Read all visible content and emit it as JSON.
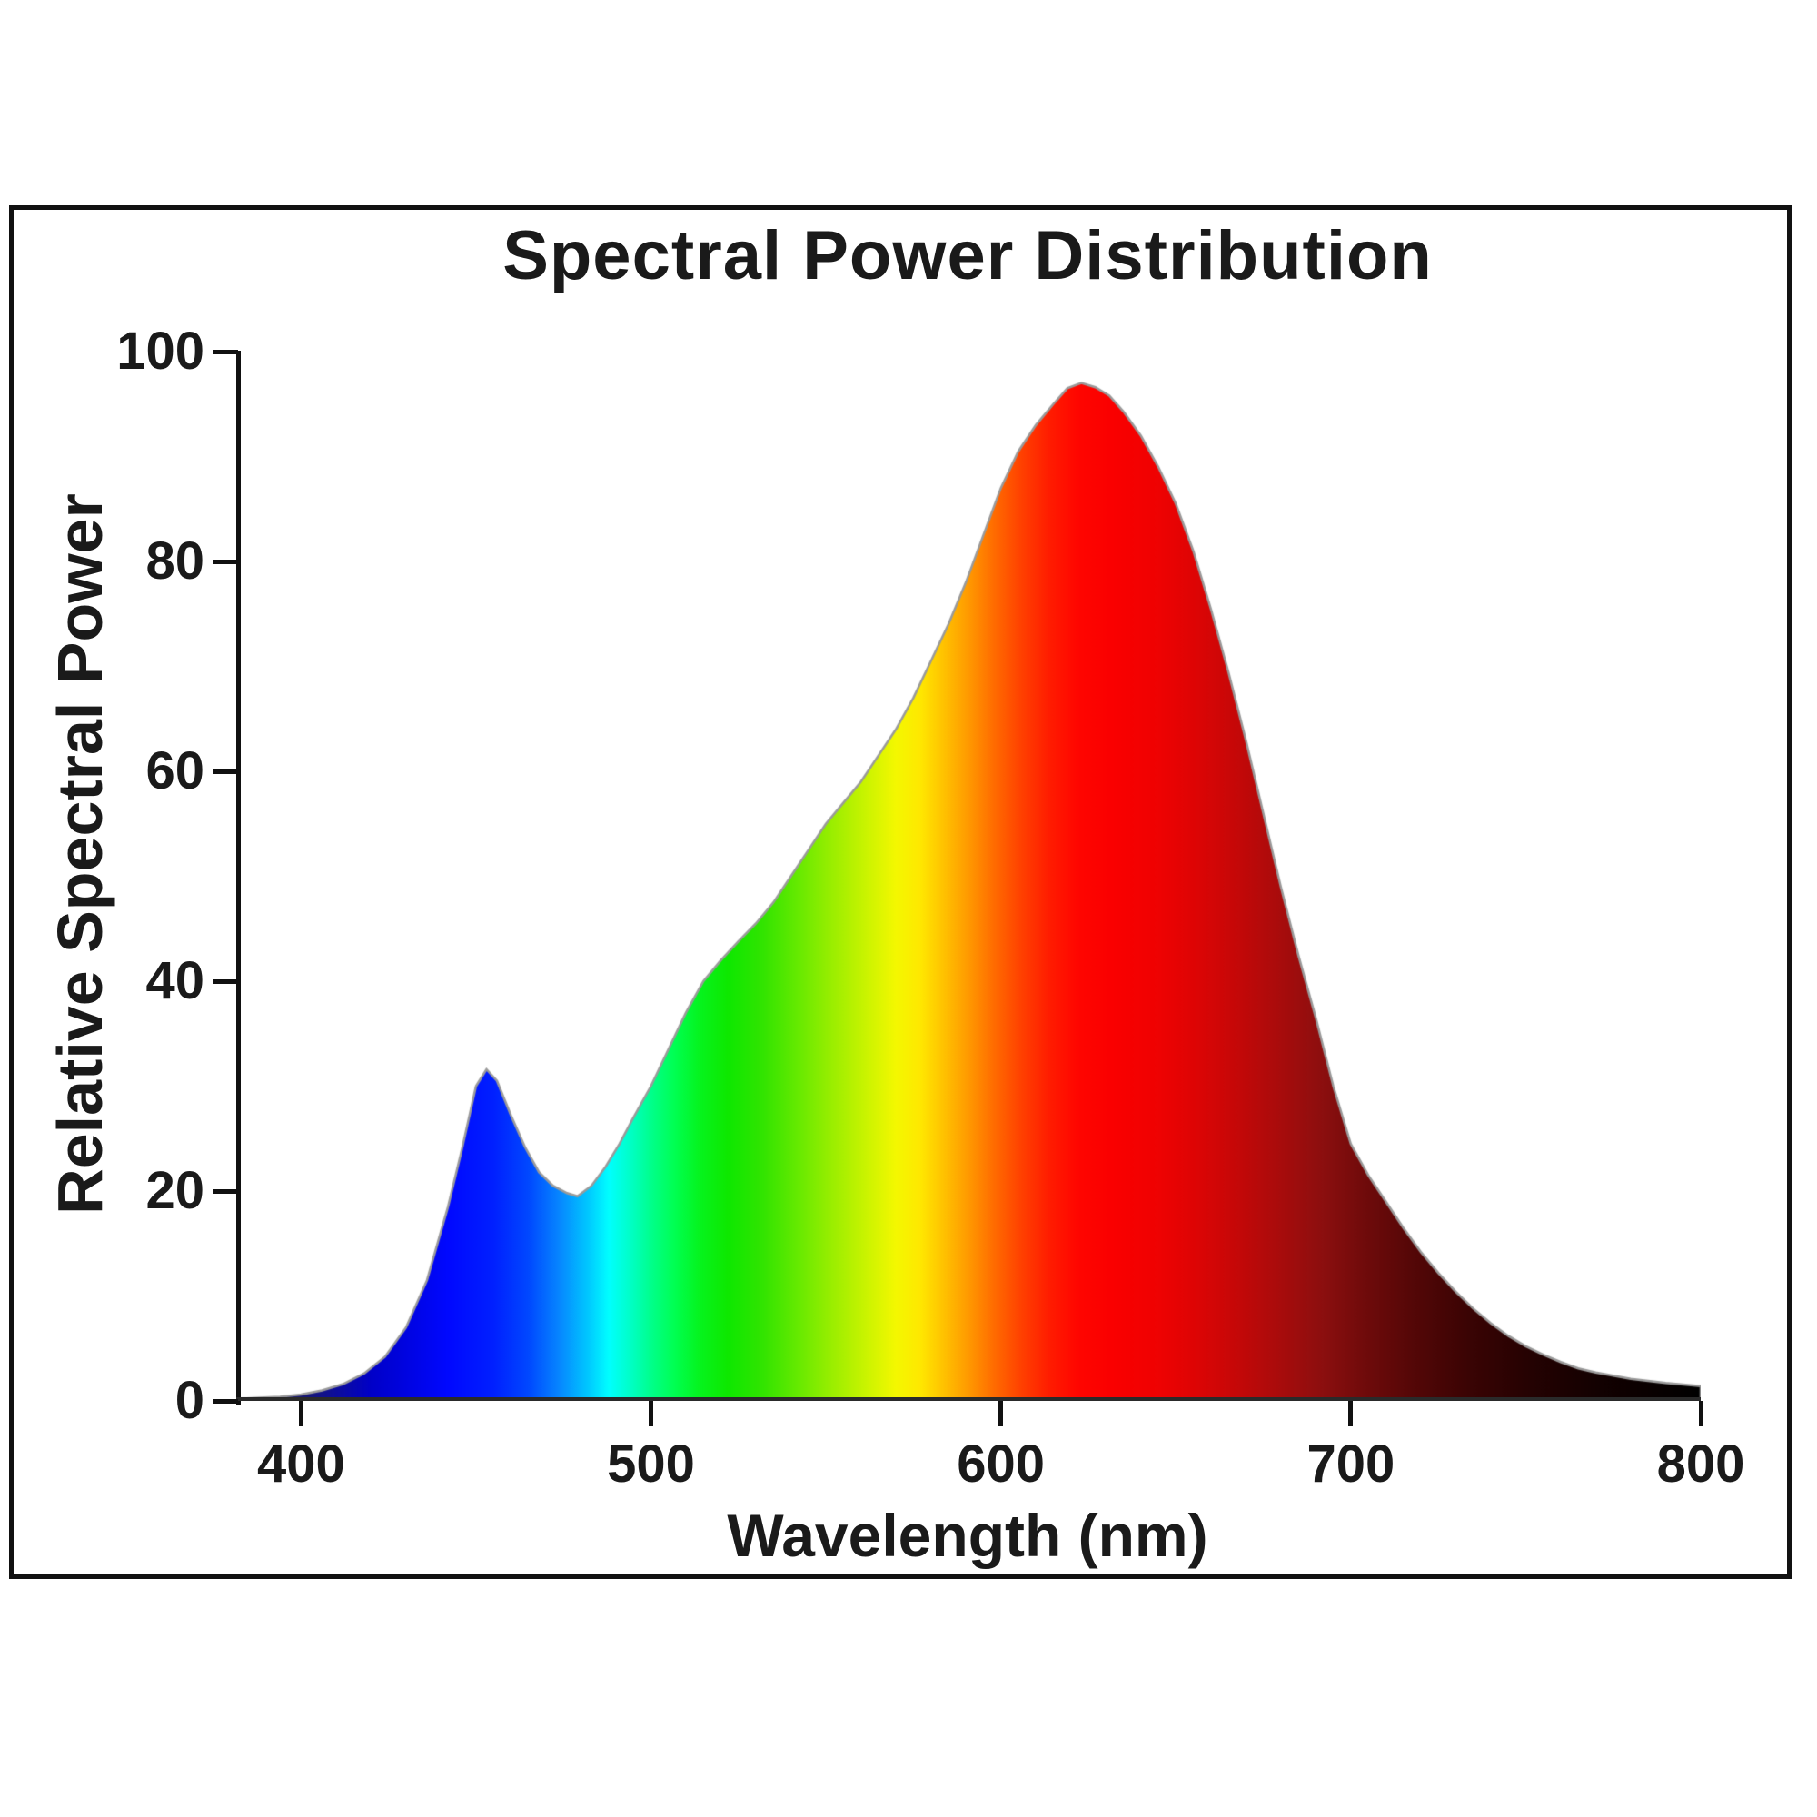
{
  "chart": {
    "title": "Spectral Power Distribution",
    "x_axis_label": "Wavelength (nm)",
    "y_axis_label": "Relative Spectral Power",
    "x_tick_labels": [
      "400",
      "500",
      "600",
      "700",
      "800"
    ],
    "y_tick_labels": [
      "0",
      "20",
      "40",
      "60",
      "80",
      "100"
    ]
  },
  "chart_data": {
    "type": "area",
    "title": "Spectral Power Distribution",
    "xlabel": "Wavelength (nm)",
    "ylabel": "Relative Spectral Power",
    "xlim": [
      382,
      800
    ],
    "ylim": [
      0,
      100
    ],
    "x_ticks": [
      400,
      500,
      600,
      700,
      800
    ],
    "y_ticks": [
      0,
      20,
      40,
      60,
      80,
      100
    ],
    "grid": false,
    "legend": false,
    "fill_style": "spectrum colors mapped to wavelength",
    "outline_color": "#9a9a9a",
    "features": {
      "blue_peak": {
        "x": 453,
        "y": 31.6
      },
      "cyan_dip": {
        "x": 479,
        "y": 19.5
      },
      "red_peak": {
        "x": 623,
        "y": 97
      },
      "end_value": {
        "x": 800,
        "y": 1.4
      }
    },
    "series": [
      {
        "name": "Relative Spectral Power",
        "points": [
          [
            382,
            0.2
          ],
          [
            388,
            0.3
          ],
          [
            394,
            0.4
          ],
          [
            400,
            0.6
          ],
          [
            406,
            1.0
          ],
          [
            412,
            1.6
          ],
          [
            418,
            2.6
          ],
          [
            424,
            4.2
          ],
          [
            430,
            7.0
          ],
          [
            436,
            11.5
          ],
          [
            442,
            18.5
          ],
          [
            446,
            24.0
          ],
          [
            450,
            30.0
          ],
          [
            453,
            31.6
          ],
          [
            456,
            30.5
          ],
          [
            460,
            27.2
          ],
          [
            464,
            24.2
          ],
          [
            468,
            21.8
          ],
          [
            472,
            20.5
          ],
          [
            476,
            19.8
          ],
          [
            479,
            19.5
          ],
          [
            483,
            20.5
          ],
          [
            487,
            22.3
          ],
          [
            491,
            24.5
          ],
          [
            495,
            27.0
          ],
          [
            500,
            30.0
          ],
          [
            505,
            33.5
          ],
          [
            510,
            37.0
          ],
          [
            515,
            40.0
          ],
          [
            520,
            42.0
          ],
          [
            525,
            43.8
          ],
          [
            530,
            45.5
          ],
          [
            535,
            47.5
          ],
          [
            540,
            50.0
          ],
          [
            545,
            52.5
          ],
          [
            550,
            55.0
          ],
          [
            555,
            57.0
          ],
          [
            560,
            59.0
          ],
          [
            565,
            61.5
          ],
          [
            570,
            64.0
          ],
          [
            575,
            67.0
          ],
          [
            580,
            70.5
          ],
          [
            585,
            74.0
          ],
          [
            590,
            78.0
          ],
          [
            595,
            82.5
          ],
          [
            600,
            87.0
          ],
          [
            605,
            90.5
          ],
          [
            610,
            93.0
          ],
          [
            615,
            95.0
          ],
          [
            619,
            96.5
          ],
          [
            623,
            97.0
          ],
          [
            627,
            96.6
          ],
          [
            631,
            95.8
          ],
          [
            635,
            94.3
          ],
          [
            640,
            92.0
          ],
          [
            645,
            89.0
          ],
          [
            650,
            85.5
          ],
          [
            655,
            81.0
          ],
          [
            660,
            75.5
          ],
          [
            665,
            69.5
          ],
          [
            670,
            63.0
          ],
          [
            675,
            56.0
          ],
          [
            680,
            49.0
          ],
          [
            685,
            42.5
          ],
          [
            690,
            36.5
          ],
          [
            695,
            30.0
          ],
          [
            700,
            24.5
          ],
          [
            705,
            21.5
          ],
          [
            710,
            19.0
          ],
          [
            715,
            16.5
          ],
          [
            720,
            14.2
          ],
          [
            725,
            12.2
          ],
          [
            730,
            10.4
          ],
          [
            735,
            8.8
          ],
          [
            740,
            7.4
          ],
          [
            745,
            6.2
          ],
          [
            750,
            5.2
          ],
          [
            755,
            4.4
          ],
          [
            760,
            3.7
          ],
          [
            765,
            3.1
          ],
          [
            770,
            2.7
          ],
          [
            775,
            2.4
          ],
          [
            780,
            2.1
          ],
          [
            785,
            1.9
          ],
          [
            790,
            1.7
          ],
          [
            795,
            1.55
          ],
          [
            800,
            1.4
          ]
        ]
      }
    ],
    "spectral_color_stops": [
      [
        382,
        "#30303c"
      ],
      [
        400,
        "#1a1a6e"
      ],
      [
        420,
        "#0000c8"
      ],
      [
        442,
        "#0008ff"
      ],
      [
        455,
        "#0020ff"
      ],
      [
        465,
        "#0048ff"
      ],
      [
        474,
        "#0788ff"
      ],
      [
        482,
        "#00c8ff"
      ],
      [
        488,
        "#00ffff"
      ],
      [
        494,
        "#00ffc8"
      ],
      [
        500,
        "#00ff8c"
      ],
      [
        507,
        "#00ff50"
      ],
      [
        514,
        "#06f41e"
      ],
      [
        522,
        "#0ee800"
      ],
      [
        532,
        "#32e400"
      ],
      [
        542,
        "#66ea00"
      ],
      [
        552,
        "#9cee00"
      ],
      [
        562,
        "#cdf400"
      ],
      [
        570,
        "#f4f800"
      ],
      [
        577,
        "#ffe800"
      ],
      [
        584,
        "#ffc000"
      ],
      [
        591,
        "#ff9800"
      ],
      [
        598,
        "#ff6c00"
      ],
      [
        606,
        "#ff4000"
      ],
      [
        614,
        "#ff1c00"
      ],
      [
        622,
        "#ff0600"
      ],
      [
        632,
        "#fa0000"
      ],
      [
        645,
        "#ef0202"
      ],
      [
        656,
        "#dd0505"
      ],
      [
        668,
        "#c40808"
      ],
      [
        680,
        "#a80c0c"
      ],
      [
        692,
        "#8c0f0f"
      ],
      [
        704,
        "#700b0b"
      ],
      [
        718,
        "#540707"
      ],
      [
        734,
        "#3a0404"
      ],
      [
        752,
        "#240202"
      ],
      [
        772,
        "#120101"
      ],
      [
        800,
        "#000000"
      ]
    ]
  }
}
